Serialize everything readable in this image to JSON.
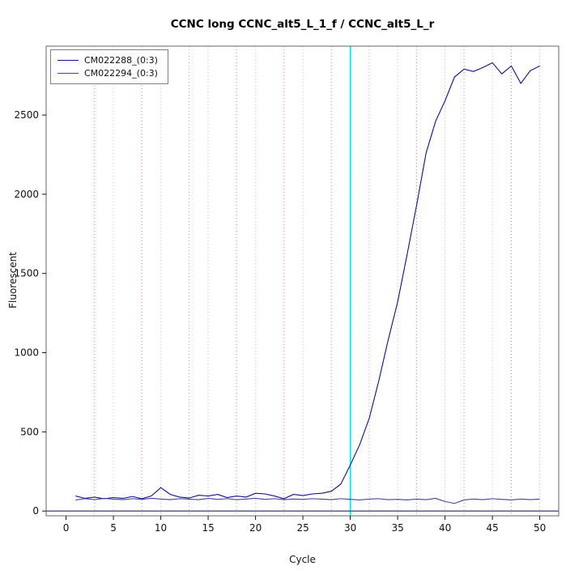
{
  "title": "CCNC long CCNC_alt5_L_1_f / CCNC_alt5_L_r",
  "chart_data": {
    "type": "line",
    "title": "CCNC long CCNC_alt5_L_1_f / CCNC_alt5_L_r",
    "xlabel": "Cycle",
    "ylabel": "Fluorescent",
    "xlim": [
      -2.1,
      52
    ],
    "ylim": [
      -30,
      2935
    ],
    "xticks": [
      0,
      5,
      10,
      15,
      20,
      25,
      30,
      35,
      40,
      45,
      50
    ],
    "yticks": [
      0,
      500,
      1000,
      1500,
      2000,
      2500
    ],
    "grid": "dotted-vertical",
    "legend_position": "top-left",
    "x": [
      1,
      2,
      3,
      4,
      5,
      6,
      7,
      8,
      9,
      10,
      11,
      12,
      13,
      14,
      15,
      16,
      17,
      18,
      19,
      20,
      21,
      22,
      23,
      24,
      25,
      26,
      27,
      28,
      29,
      30,
      31,
      32,
      33,
      34,
      35,
      36,
      37,
      38,
      39,
      40,
      41,
      42,
      43,
      44,
      45,
      46,
      47,
      48,
      49,
      50
    ],
    "series": [
      {
        "name": "CM022288_(0:3)",
        "color": "#10108c",
        "values": [
          95,
          80,
          88,
          78,
          85,
          80,
          92,
          78,
          95,
          148,
          105,
          88,
          82,
          100,
          95,
          105,
          85,
          95,
          88,
          112,
          108,
          95,
          78,
          105,
          98,
          108,
          112,
          125,
          170,
          290,
          420,
          585,
          820,
          1080,
          1320,
          1620,
          1930,
          2260,
          2460,
          2590,
          2740,
          2790,
          2775,
          2800,
          2830,
          2760,
          2810,
          2700,
          2780,
          2810
        ]
      },
      {
        "name": "CM022294_(0:3)",
        "color": "#4040a8",
        "values": [
          70,
          78,
          72,
          80,
          75,
          72,
          78,
          74,
          80,
          76,
          72,
          78,
          75,
          72,
          80,
          74,
          78,
          72,
          76,
          80,
          74,
          78,
          72,
          76,
          74,
          78,
          75,
          72,
          78,
          74,
          70,
          76,
          78,
          72,
          74,
          70,
          76,
          72,
          80,
          60,
          48,
          70,
          76,
          72,
          78,
          74,
          70,
          76,
          72,
          76
        ]
      }
    ],
    "threshold_vline": {
      "x": 30,
      "color": "#00e5e5"
    },
    "gridlines_red": [
      3,
      8,
      13,
      18,
      23,
      28,
      32,
      37,
      42,
      47
    ],
    "gridlines_gray": [
      5,
      10,
      15,
      20,
      25,
      30,
      35,
      40,
      45,
      50
    ],
    "zero_hline": {
      "y": 0,
      "color": "#3a3a6e"
    },
    "colors": {
      "plot_border": "#666666",
      "grid_gray": "#bbbbbb",
      "grid_red": "#d98a8a",
      "tick": "#111111"
    }
  }
}
